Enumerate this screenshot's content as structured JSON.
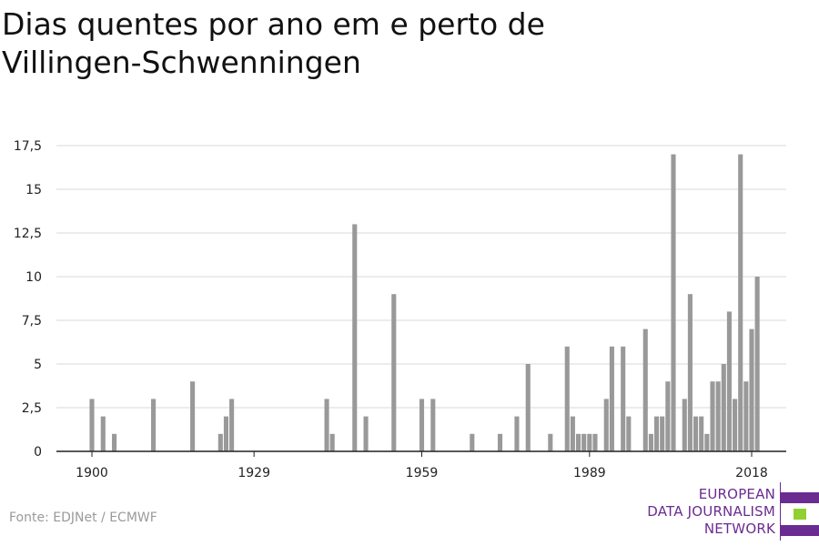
{
  "title": "Dias quentes por ano em e perto de Villingen-Schwenningen",
  "source": "Fonte: EDJNet / ECMWF",
  "logo": {
    "lines": [
      "EUROPEAN",
      "DATA JOURNALISM",
      "NETWORK"
    ],
    "colors": {
      "purple": "#6b2c91",
      "green": "#8fd12f"
    }
  },
  "colors": {
    "bar": "#999999",
    "grid": "#d9d9d9",
    "axis": "#222222"
  },
  "chart_data": {
    "type": "bar",
    "title": "Dias quentes por ano em e perto de Villingen-Schwenningen",
    "xlabel": "",
    "ylabel": "",
    "ylim": [
      0,
      17.5
    ],
    "xlim": [
      1900,
      2018
    ],
    "grid": true,
    "y_ticks": [
      0,
      2.5,
      5,
      7.5,
      10,
      12.5,
      15,
      17.5
    ],
    "y_tick_labels": [
      "0",
      "2,5",
      "5",
      "7,5",
      "10",
      "12,5",
      "15",
      "17,5"
    ],
    "x_ticks": [
      1900,
      1929,
      1959,
      1989,
      2018
    ],
    "x_tick_labels": [
      "1900",
      "1929",
      "1959",
      "1989",
      "2018"
    ],
    "x": [
      1900,
      1902,
      1904,
      1911,
      1918,
      1923,
      1924,
      1925,
      1942,
      1943,
      1947,
      1949,
      1954,
      1959,
      1961,
      1968,
      1973,
      1976,
      1978,
      1982,
      1985,
      1986,
      1987,
      1988,
      1989,
      1990,
      1992,
      1993,
      1995,
      1996,
      1999,
      2000,
      2001,
      2002,
      2003,
      2004,
      2006,
      2007,
      2008,
      2009,
      2010,
      2011,
      2012,
      2013,
      2014,
      2015,
      2016,
      2017,
      2018,
      2019
    ],
    "values": [
      3,
      2,
      1,
      3,
      4,
      1,
      2,
      3,
      3,
      1,
      13,
      2,
      9,
      3,
      3,
      1,
      1,
      2,
      5,
      1,
      6,
      2,
      1,
      1,
      1,
      1,
      3,
      6,
      6,
      2,
      7,
      1,
      2,
      2,
      4,
      17,
      3,
      9,
      2,
      2,
      1,
      4,
      4,
      5,
      8,
      3,
      17,
      4,
      7,
      10
    ]
  }
}
